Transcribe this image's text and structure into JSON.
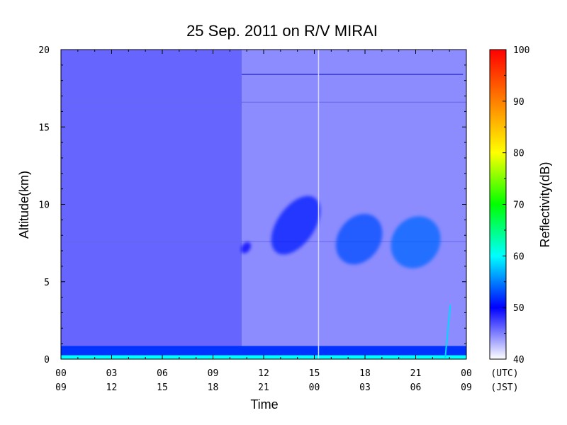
{
  "chart_data": {
    "type": "heatmap",
    "title": "25 Sep. 2011  on R/V MIRAI",
    "xlabel": "Time",
    "ylabel": "Altitude(km)",
    "x_range_hours_utc": [
      0,
      24
    ],
    "ylim": [
      0,
      20
    ],
    "x_ticks_utc": [
      "00",
      "03",
      "06",
      "09",
      "12",
      "15",
      "18",
      "21",
      "00"
    ],
    "x_ticks_jst": [
      "09",
      "12",
      "15",
      "18",
      "21",
      "00",
      "03",
      "06",
      "09"
    ],
    "x_tick_unit_utc": "(UTC)",
    "x_tick_unit_jst": "(JST)",
    "y_ticks": [
      0,
      5,
      10,
      15,
      20
    ],
    "colorbar": {
      "label": "Reflectivity(dB)",
      "range": [
        40,
        100
      ],
      "ticks": [
        40,
        50,
        60,
        70,
        80,
        90,
        100
      ],
      "colors": [
        "#ffffff",
        "#0000ff",
        "#00ffff",
        "#00ff00",
        "#ffff00",
        "#ff8000",
        "#ff0000"
      ]
    },
    "background_reflectivity_db": 46,
    "cloud_features": [
      {
        "name": "cloud-1",
        "t_start_utc": 10.7,
        "t_end_utc": 11.2,
        "alt_bottom_km": 6.8,
        "alt_top_km": 7.6,
        "reflectivity_db": 50
      },
      {
        "name": "cloud-2",
        "t_start_utc": 12.8,
        "t_end_utc": 15.0,
        "alt_bottom_km": 6.5,
        "alt_top_km": 10.8,
        "reflectivity_db": 51
      },
      {
        "name": "cloud-3",
        "t_start_utc": 16.4,
        "t_end_utc": 18.9,
        "alt_bottom_km": 6.0,
        "alt_top_km": 9.5,
        "reflectivity_db": 53
      },
      {
        "name": "cloud-4",
        "t_start_utc": 19.6,
        "t_end_utc": 22.4,
        "alt_bottom_km": 5.8,
        "alt_top_km": 9.3,
        "reflectivity_db": 54
      }
    ]
  }
}
